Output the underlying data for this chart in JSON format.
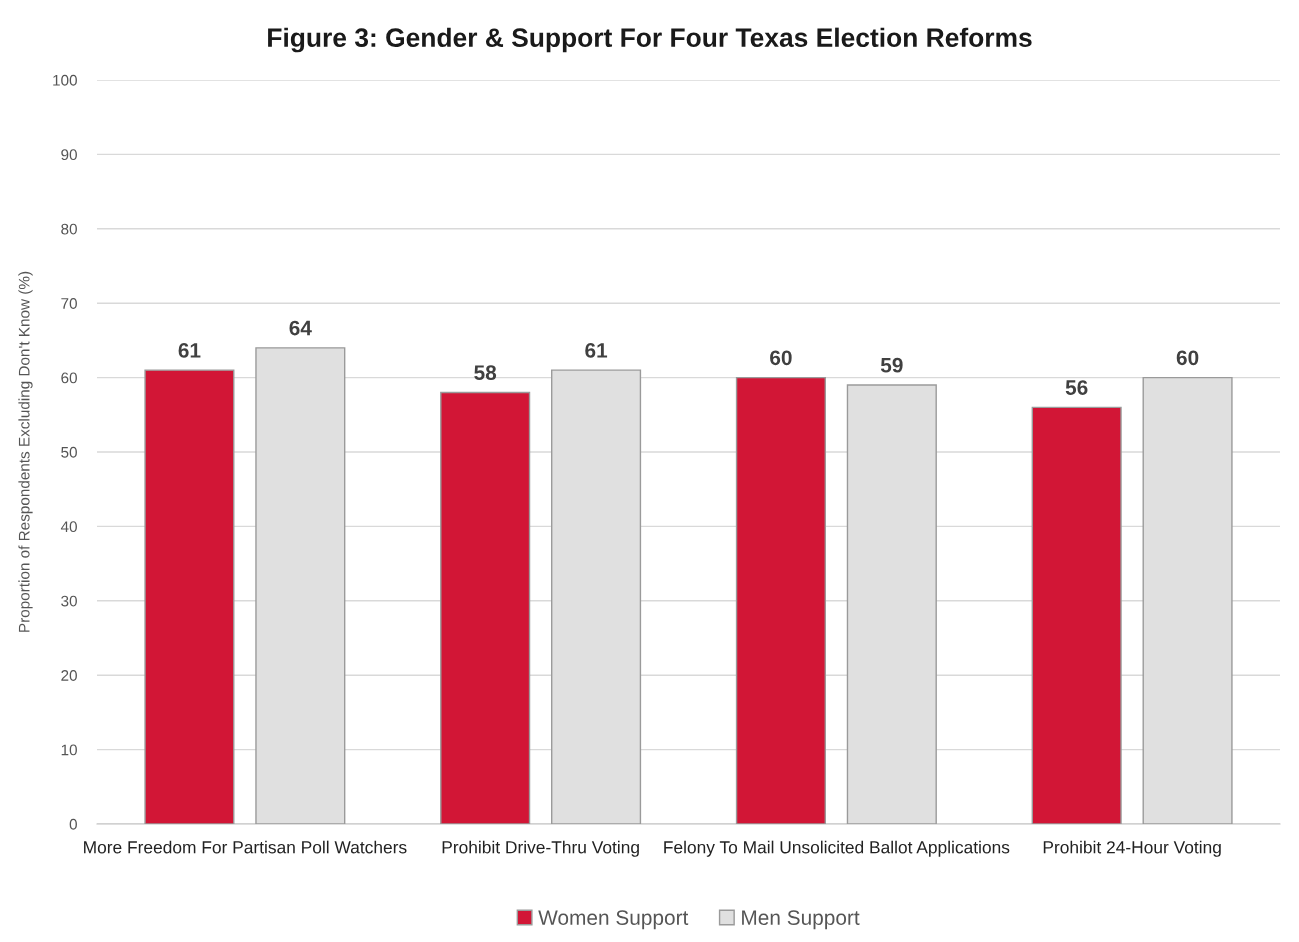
{
  "chart_data": {
    "type": "bar",
    "title": "Figure 3: Gender & Support For Four Texas Election Reforms",
    "ylabel": "Proportion of Respondents Excluding Don't Know (%)",
    "categories": [
      "More Freedom For Partisan Poll Watchers",
      "Prohibit Drive-Thru Voting",
      "Felony To Mail Unsolicited Ballot Applications",
      "Prohibit 24-Hour Voting"
    ],
    "series": [
      {
        "name": "Women Support",
        "color": "#d21636",
        "values": [
          61,
          58,
          60,
          56
        ]
      },
      {
        "name": "Men Support",
        "color": "#e0e0e0",
        "values": [
          64,
          61,
          59,
          60
        ]
      }
    ],
    "ylim": [
      0,
      100
    ],
    "yticks": [
      0,
      10,
      20,
      30,
      40,
      50,
      60,
      70,
      80,
      90,
      100
    ],
    "grid": "y",
    "legend": "bottom",
    "data_labels": true
  }
}
